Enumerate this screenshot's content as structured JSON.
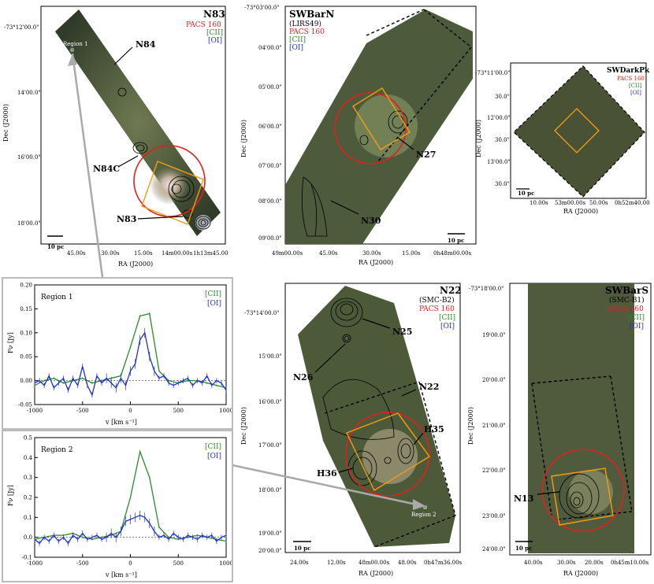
{
  "colors": {
    "pacs": "#e0201c",
    "cii": "#2a8a2a",
    "oi": "#1f2fd0",
    "box": "#f39c12",
    "map": "#4a5a3a",
    "grey": "#aaaaaa"
  },
  "panels": {
    "n83": {
      "title": "N83",
      "legend": [
        "PACS 160",
        "[CII]",
        "[OI]"
      ],
      "region_label": "Region 1",
      "labels": [
        "N84",
        "N84C",
        "N83"
      ],
      "xticks": [
        "45.00s",
        "30.00s",
        "15.00s",
        "14m00.00s",
        "1h13m45.00s"
      ],
      "yticks": [
        "-73°12'00.0\"",
        "14'00.0\"",
        "16'00.0\"",
        "18'00.0\""
      ],
      "xlabel": "RA (J2000)",
      "ylabel": "Dec (J2000)",
      "scale": "10 pc"
    },
    "swbarn": {
      "title": "SWBarN",
      "subtitle": "(LIRS49)",
      "legend": [
        "PACS 160",
        "[CII]",
        "[OI]"
      ],
      "labels": [
        "N27",
        "N30"
      ],
      "xticks": [
        "49m00.00s",
        "45.00s",
        "30.00s",
        "15.00s",
        "0h48m00.00s"
      ],
      "yticks": [
        "-73°03'00.0\"",
        "04'00.0\"",
        "05'00.0\"",
        "06'00.0\"",
        "07'00.0\"",
        "08'00.0\"",
        "09'00.0\""
      ],
      "xlabel": "RA (J2000)",
      "ylabel": "Dec (J2000)",
      "scale": "10 pc"
    },
    "swdarkpk": {
      "title": "SWDarkPk",
      "legend": [
        "PACS 160",
        "[CII]",
        "[OI]"
      ],
      "xticks": [
        "10.00s",
        "53m00.00s",
        "50.00s",
        "0h52m40.00s"
      ],
      "yticks": [
        "-73°11'00.0\"",
        "30.0\"",
        "12'00.0\"",
        "30.0\"",
        "13'00.0\"",
        "30.0\""
      ],
      "xlabel": "RA (J2000)",
      "ylabel": "Dec (J2000)",
      "scale": "10 pc"
    },
    "n22": {
      "title": "N22",
      "subtitle": "(SMC-B2)",
      "legend": [
        "PACS 160",
        "[CII]",
        "[OI]"
      ],
      "region_label": "Region 2",
      "labels": [
        "N25",
        "N26",
        "N22",
        "H35",
        "H36"
      ],
      "xticks": [
        "24.00s",
        "12.00s",
        "48m00.00s",
        "48.00s",
        "0h47m36.00s"
      ],
      "yticks": [
        "-73°14'00.0\"",
        "15'00.0\"",
        "16'00.0\"",
        "17'00.0\"",
        "18'00.0\"",
        "19'00.0\"",
        "20'00.0\""
      ],
      "xlabel": "RA (J2000)",
      "ylabel": "Dec (J2000)",
      "scale": "10 pc"
    },
    "swbars": {
      "title": "SWBarS",
      "subtitle": "(SMC-B1)",
      "legend": [
        "PACS 160",
        "[CII]",
        "[OI]"
      ],
      "labels": [
        "N13"
      ],
      "xticks": [
        "40.00s",
        "30.00s",
        "20.00s",
        "0h45m10.00s"
      ],
      "yticks": [
        "-73°18'00.0\"",
        "19'00.0\"",
        "20'00.0\"",
        "21'00.0\"",
        "22'00.0\"",
        "23'00.0\"",
        "24'00.0\""
      ],
      "xlabel": "RA (J2000)",
      "ylabel": "Dec (J2000)",
      "scale": "10 pc"
    }
  },
  "chart_data": [
    {
      "type": "line",
      "title": "Region 1",
      "xlabel": "v [km s⁻¹]",
      "ylabel": "Fν [Jy]",
      "xlim": [
        -1000,
        1000
      ],
      "ylim": [
        -0.05,
        0.2
      ],
      "xticks": [
        -1000,
        -500,
        0,
        500,
        1000
      ],
      "yticks": [
        -0.05,
        0.0,
        0.05,
        0.1,
        0.15,
        0.2
      ],
      "ytick_labels": [
        "-0.05",
        "0.00",
        "0.05",
        "0.10",
        "0.15",
        "0.20"
      ],
      "series": [
        {
          "name": "[CII]",
          "x": [
            -1000,
            -900,
            -800,
            -700,
            -600,
            -500,
            -400,
            -300,
            -200,
            -100,
            0,
            100,
            200,
            300,
            400,
            500,
            600,
            700,
            800,
            900,
            1000
          ],
          "values": [
            -0.01,
            0.0,
            0.005,
            -0.005,
            0.0,
            0.005,
            -0.005,
            0.0,
            0.005,
            0.01,
            0.07,
            0.135,
            0.14,
            0.02,
            0.0,
            -0.005,
            0.0,
            0.0,
            -0.005,
            -0.01,
            -0.015
          ]
        },
        {
          "name": "[OI]",
          "x": [
            -1000,
            -950,
            -900,
            -850,
            -800,
            -750,
            -700,
            -650,
            -600,
            -550,
            -500,
            -450,
            -400,
            -350,
            -300,
            -250,
            -200,
            -150,
            -100,
            -50,
            0,
            50,
            100,
            150,
            200,
            250,
            300,
            350,
            400,
            450,
            500,
            550,
            600,
            650,
            700,
            750,
            800,
            850,
            900,
            950,
            1000
          ],
          "values": [
            -0.005,
            0.0,
            -0.01,
            0.01,
            -0.015,
            -0.005,
            0.005,
            -0.02,
            0.005,
            -0.01,
            0.03,
            -0.01,
            -0.03,
            0.01,
            -0.005,
            0.005,
            -0.005,
            -0.015,
            0.005,
            -0.01,
            0.02,
            0.035,
            0.085,
            0.1,
            0.05,
            0.02,
            0.005,
            0.01,
            -0.005,
            -0.01,
            -0.005,
            0.0,
            0.005,
            -0.01,
            0.0,
            -0.005,
            0.01,
            -0.01,
            0.0,
            -0.005,
            -0.02
          ]
        }
      ]
    },
    {
      "type": "line",
      "title": "Region 2",
      "xlabel": "v [km s⁻¹]",
      "ylabel": "Fν [Jy]",
      "xlim": [
        -1000,
        1000
      ],
      "ylim": [
        -0.1,
        0.5
      ],
      "xticks": [
        -1000,
        -500,
        0,
        500,
        1000
      ],
      "yticks": [
        -0.1,
        0.0,
        0.1,
        0.2,
        0.3,
        0.4,
        0.5
      ],
      "ytick_labels": [
        "-0.1",
        "0.0",
        "0.1",
        "0.2",
        "0.3",
        "0.4",
        "0.5"
      ],
      "series": [
        {
          "name": "[CII]",
          "x": [
            -1000,
            -900,
            -800,
            -700,
            -600,
            -500,
            -400,
            -300,
            -200,
            -100,
            0,
            100,
            200,
            300,
            400,
            500,
            600,
            700,
            800,
            900,
            1000
          ],
          "values": [
            -0.01,
            0.0,
            0.01,
            0.01,
            0.02,
            0.0,
            -0.01,
            0.0,
            0.01,
            0.03,
            0.2,
            0.43,
            0.3,
            0.05,
            0.0,
            -0.01,
            0.0,
            0.01,
            0.0,
            -0.01,
            -0.02
          ]
        },
        {
          "name": "[OI]",
          "x": [
            -1000,
            -950,
            -900,
            -850,
            -800,
            -750,
            -700,
            -650,
            -600,
            -550,
            -500,
            -450,
            -400,
            -350,
            -300,
            -250,
            -200,
            -150,
            -100,
            -50,
            0,
            50,
            100,
            150,
            200,
            250,
            300,
            350,
            400,
            450,
            500,
            550,
            600,
            650,
            700,
            750,
            800,
            850,
            900,
            950,
            1000
          ],
          "values": [
            -0.01,
            -0.03,
            0.0,
            -0.02,
            0.01,
            -0.02,
            0.0,
            -0.03,
            0.01,
            -0.01,
            0.02,
            -0.01,
            0.0,
            0.01,
            -0.01,
            0.0,
            0.02,
            0.0,
            0.03,
            0.08,
            0.09,
            0.1,
            0.11,
            0.1,
            0.07,
            0.03,
            0.0,
            0.01,
            -0.01,
            0.02,
            0.0,
            -0.01,
            0.01,
            0.0,
            -0.01,
            0.01,
            0.0,
            0.01,
            -0.02,
            0.0,
            0.01
          ]
        }
      ]
    }
  ]
}
